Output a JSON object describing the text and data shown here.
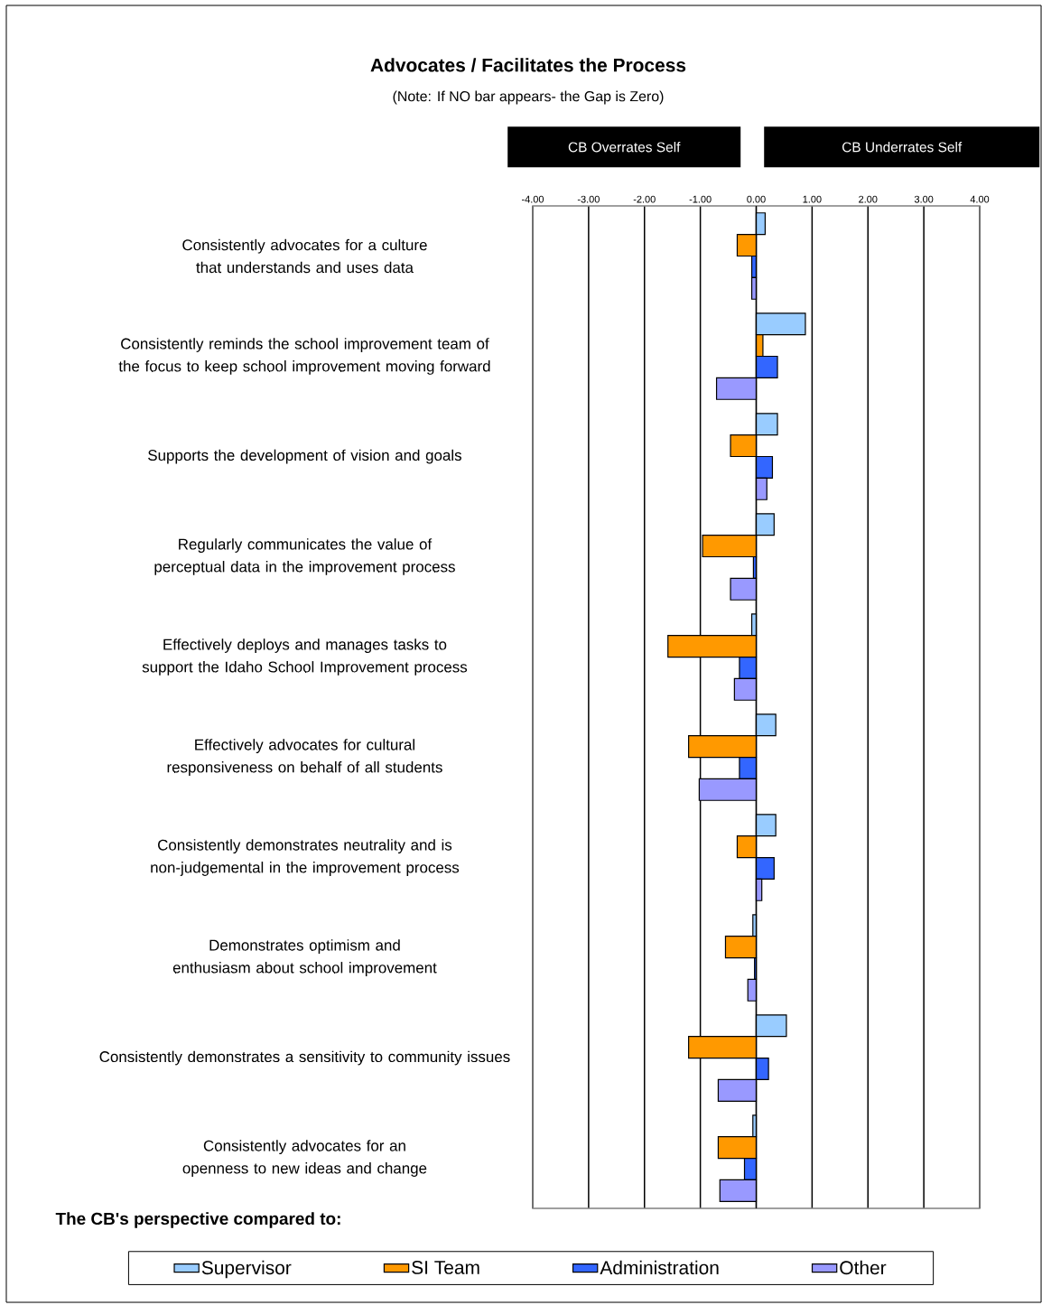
{
  "chart_data": {
    "type": "bar",
    "orientation": "horizontal",
    "title": "Advocates / Facilitates the Process",
    "subtitle": "(Note: If NO bar appears- the Gap is Zero)",
    "annotations": [
      "CB Overrates Self",
      "CB Underrates Self"
    ],
    "categories": [
      "Consistently advocates for a culture that understands and uses data",
      "Consistently reminds the school improvement team of the focus to keep school improvement moving forward",
      "Supports the development of vision and goals",
      "Regularly communicates the value of perceptual data in the improvement process",
      "Effectively deploys and manages tasks to support the Idaho School Improvement process",
      "Effectively advocates for cultural responsiveness on behalf of all students",
      "Consistently demonstrates neutrality and is non-judgemental in the improvement process",
      "Demonstrates optimism and enthusiasm about school improvement",
      "Consistently demonstrates a sensitivity to community issues",
      "Consistently advocates for an openness to new ideas and change"
    ],
    "series": [
      {
        "name": "Supervisor",
        "color": "#99ccff",
        "values": [
          0.16,
          0.88,
          0.38,
          0.32,
          -0.08,
          0.35,
          0.35,
          -0.06,
          0.54,
          -0.06
        ]
      },
      {
        "name": "SI Team",
        "color": "#ff9900",
        "values": [
          -0.34,
          0.12,
          -0.46,
          -0.96,
          -1.58,
          -1.21,
          -0.34,
          -0.55,
          -1.21,
          -0.68
        ]
      },
      {
        "name": "Administration",
        "color": "#3366ff",
        "values": [
          -0.08,
          0.38,
          0.29,
          -0.05,
          -0.3,
          -0.3,
          0.32,
          -0.03,
          0.22,
          -0.21
        ]
      },
      {
        "name": "Other",
        "color": "#9999ff",
        "values": [
          -0.08,
          -0.71,
          0.19,
          -0.46,
          -0.39,
          -1.02,
          0.1,
          -0.15,
          -0.68,
          -0.65
        ]
      }
    ],
    "xlim": [
      -4,
      4
    ],
    "xticks": [
      {
        "value": -4,
        "label": "-4.00"
      },
      {
        "value": -3,
        "label": "-3.00"
      },
      {
        "value": -2,
        "label": "-2.00"
      },
      {
        "value": -1,
        "label": "-1.00"
      },
      {
        "value": 0,
        "label": "0.00"
      },
      {
        "value": 1,
        "label": "1.00"
      },
      {
        "value": 2,
        "label": "2.00"
      },
      {
        "value": 3,
        "label": "3.00"
      },
      {
        "value": 4,
        "label": "4.00"
      }
    ],
    "grid": "x",
    "legend": "bottom",
    "legend_title": "The CB's perspective compared to:"
  }
}
